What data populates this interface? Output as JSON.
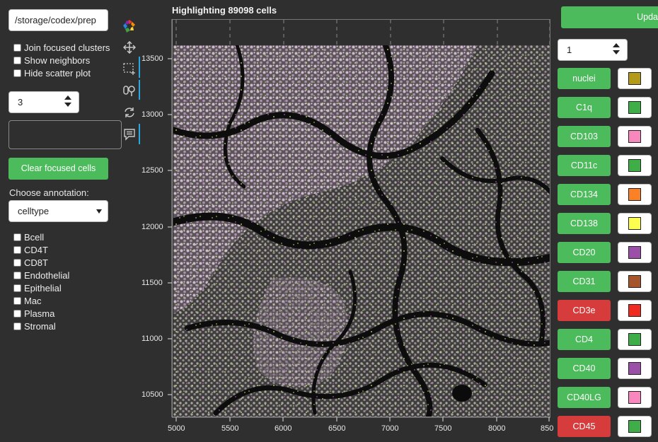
{
  "path_value": "/storage/codex/prep",
  "options": [
    {
      "label": "Join focused clusters",
      "checked": false
    },
    {
      "label": "Show neighbors",
      "checked": false
    },
    {
      "label": "Hide scatter plot",
      "checked": false
    }
  ],
  "neighbor_count": "3",
  "clear_focused_label": "Clear focused cells",
  "annotation_label": "Choose annotation:",
  "annotation_value": "celltype",
  "celltypes": [
    "Bcell",
    "CD4T",
    "CD8T",
    "Endothelial",
    "Epithelial",
    "Mac",
    "Plasma",
    "Stromal"
  ],
  "plot": {
    "title": "Highlighting 89098 cells",
    "x_ticks": [
      "5000",
      "5500",
      "6000",
      "6500",
      "7000",
      "7500",
      "8000",
      "850"
    ],
    "y_ticks": [
      "13500",
      "13000",
      "12500",
      "12000",
      "11500",
      "11000",
      "10500"
    ]
  },
  "right_panel": {
    "update_label": "Upda",
    "level_value": "1",
    "markers": [
      {
        "name": "nuclei",
        "state": "on",
        "color": "#b39a1b"
      },
      {
        "name": "C1q",
        "state": "on",
        "color": "#3fae49"
      },
      {
        "name": "CD103",
        "state": "on",
        "color": "#f887be"
      },
      {
        "name": "CD11c",
        "state": "on",
        "color": "#3fae49"
      },
      {
        "name": "CD134",
        "state": "on",
        "color": "#fb8124"
      },
      {
        "name": "CD138",
        "state": "on",
        "color": "#fdfd4f"
      },
      {
        "name": "CD20",
        "state": "on",
        "color": "#9b4fa8"
      },
      {
        "name": "CD31",
        "state": "on",
        "color": "#a6562c"
      },
      {
        "name": "CD3e",
        "state": "off",
        "color": "#f22b21"
      },
      {
        "name": "CD4",
        "state": "on",
        "color": "#3fae49"
      },
      {
        "name": "CD40",
        "state": "on",
        "color": "#9b4fa8"
      },
      {
        "name": "CD40LG",
        "state": "on",
        "color": "#f887be"
      },
      {
        "name": "CD45",
        "state": "off",
        "color": "#3fae49"
      }
    ]
  }
}
